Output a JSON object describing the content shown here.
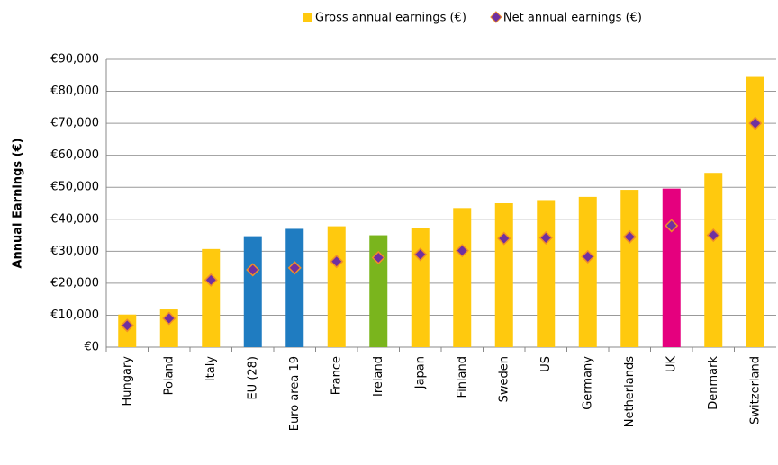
{
  "chart_data": {
    "type": "bar",
    "y_label": "Annual Earnings (€)",
    "categories": [
      "Hungary",
      "Poland",
      "Italy",
      "EU (28)",
      "Euro area 19",
      "France",
      "Ireland",
      "Japan",
      "Finland",
      "Sweden",
      "US",
      "Germany",
      "Netherlands",
      "UK",
      "Denmark",
      "Switzerland"
    ],
    "series": [
      {
        "name": "Gross annual earnings (€)",
        "type": "bar",
        "color": "#ffc90e",
        "colors": [
          "#ffc90e",
          "#ffc90e",
          "#ffc90e",
          "#1f7cc1",
          "#1f7cc1",
          "#ffc90e",
          "#7ab51d",
          "#ffc90e",
          "#ffc90e",
          "#ffc90e",
          "#ffc90e",
          "#ffc90e",
          "#ffc90e",
          "#e5007e",
          "#ffc90e",
          "#ffc90e"
        ],
        "values": [
          10200,
          11800,
          30700,
          34700,
          37000,
          37800,
          35000,
          37200,
          43500,
          45000,
          46000,
          47000,
          49200,
          49600,
          54500,
          84500
        ]
      },
      {
        "name": "Net annual earnings (€)",
        "type": "scatter",
        "color": "#7030a0",
        "edge_color": "#f08c28",
        "values": [
          6800,
          9000,
          21000,
          24200,
          24800,
          26800,
          28000,
          29000,
          30200,
          34000,
          34200,
          28300,
          34500,
          38000,
          35000,
          70000
        ]
      }
    ],
    "ylim": [
      0,
      90000
    ],
    "yticks": [
      {
        "value": 0,
        "label": "€0"
      },
      {
        "value": 10000,
        "label": "€10,000"
      },
      {
        "value": 20000,
        "label": "€20,000"
      },
      {
        "value": 30000,
        "label": "€30,000"
      },
      {
        "value": 40000,
        "label": "€40,000"
      },
      {
        "value": 50000,
        "label": "€50,000"
      },
      {
        "value": 60000,
        "label": "€60,000"
      },
      {
        "value": 70000,
        "label": "€70,000"
      },
      {
        "value": 80000,
        "label": "€80,000"
      },
      {
        "value": 90000,
        "label": "€90,000"
      }
    ],
    "grid": true,
    "legend": "top"
  }
}
